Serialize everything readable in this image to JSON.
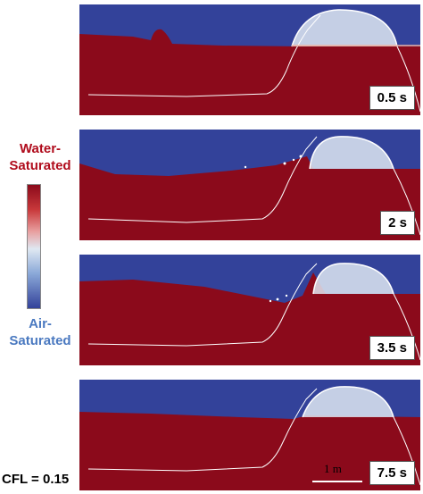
{
  "legend": {
    "water_label_line1": "Water-",
    "water_label_line2": "Saturated",
    "air_label_line1": "Air-",
    "air_label_line2": "Saturated",
    "colors": {
      "water": "#8b0a1b",
      "air": "#33429a",
      "mid": "#dfe8f2"
    }
  },
  "panels": [
    {
      "time": "0.5 s"
    },
    {
      "time": "2 s"
    },
    {
      "time": "3.5 s"
    },
    {
      "time": "7.5 s"
    }
  ],
  "cfl_label": "CFL = 0.15",
  "scale_label": "1 m"
}
